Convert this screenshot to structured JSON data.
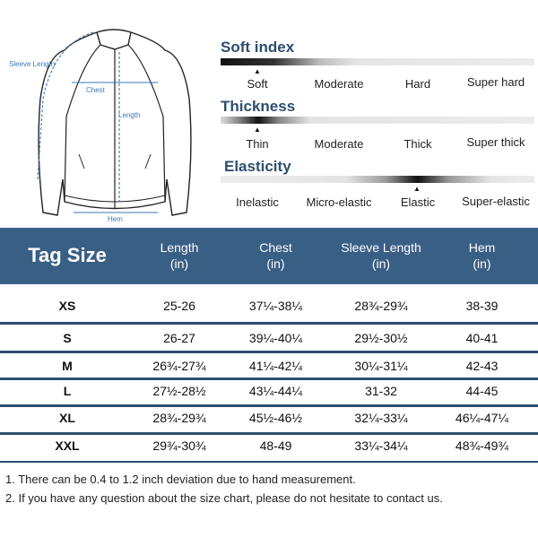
{
  "diagram": {
    "labels": {
      "sleeve_length": "Sleeve Length",
      "chest": "Chest",
      "length": "Length",
      "hem": "Hem"
    }
  },
  "scales": [
    {
      "title": "Soft index",
      "options": [
        "Soft",
        "Moderate",
        "Hard",
        "Super hard"
      ],
      "selected": "Soft"
    },
    {
      "title": "Thickness",
      "options": [
        "Thin",
        "Moderate",
        "Thick",
        "Super thick"
      ],
      "selected": "Thin"
    },
    {
      "title": "Elasticity",
      "options": [
        "Inelastic",
        "Micro-elastic",
        "Elastic",
        "Super-elastic"
      ],
      "selected": "Elastic"
    }
  ],
  "table": {
    "headers": [
      {
        "line1": "Tag Size",
        "line2": ""
      },
      {
        "line1": "Length",
        "line2": "(in)"
      },
      {
        "line1": "Chest",
        "line2": "(in)"
      },
      {
        "line1": "Sleeve Length",
        "line2": "(in)"
      },
      {
        "line1": "Hem",
        "line2": "(in)"
      }
    ],
    "rows": [
      [
        "XS",
        "25-26",
        "37¼-38¼",
        "28¾-29¾",
        "38-39"
      ],
      [
        "S",
        "26-27",
        "39¼-40¼",
        "29½-30½",
        "40-41"
      ],
      [
        "M",
        "26¾-27¾",
        "41¼-42¼",
        "30¼-31¼",
        "42-43"
      ],
      [
        "L",
        "27½-28½",
        "43¼-44¼",
        "31-32",
        "44-45"
      ],
      [
        "XL",
        "28¾-29¾",
        "45½-46½",
        "32¼-33¼",
        "46¼-47¼"
      ],
      [
        "XXL",
        "29¾-30¾",
        "48-49",
        "33¼-34¼",
        "48¾-49¾"
      ]
    ]
  },
  "notes": [
    "1. There can be 0.4 to 1.2 inch deviation due to hand measurement.",
    "2. If you have any question about the size chart, please do not hesitate to contact us."
  ],
  "colors": {
    "header_bg": "#3a5f85",
    "title_text": "#2d4e6f",
    "dimension_lines": "#3a79b9"
  }
}
